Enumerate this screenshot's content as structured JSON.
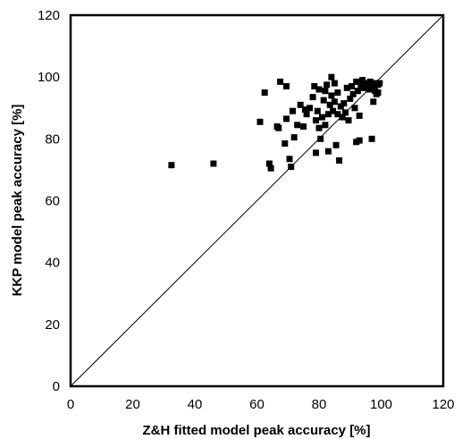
{
  "chart_data": {
    "type": "scatter",
    "xlabel": "Z&H fitted model peak accuracy [%]",
    "ylabel": "KKP model peak accuracy [%]",
    "xlim": [
      0,
      120
    ],
    "ylim": [
      0,
      120
    ],
    "xticks": [
      0,
      20,
      40,
      60,
      80,
      100,
      120
    ],
    "yticks": [
      0,
      20,
      40,
      60,
      80,
      100,
      120
    ],
    "grid": false,
    "legend": "none",
    "marker": "square",
    "marker_color": "#000000",
    "reference_line": {
      "from": [
        0,
        0
      ],
      "to": [
        120,
        120
      ],
      "label": ""
    },
    "series": [
      {
        "values": [
          [
            32.5,
            71.5
          ],
          [
            46.0,
            72.0
          ],
          [
            61.0,
            85.5
          ],
          [
            62.5,
            95.0
          ],
          [
            64.0,
            72.0
          ],
          [
            64.5,
            70.5
          ],
          [
            66.5,
            84.0
          ],
          [
            67.0,
            83.5
          ],
          [
            67.5,
            98.5
          ],
          [
            69.0,
            78.5
          ],
          [
            69.5,
            86.5
          ],
          [
            69.5,
            97.0
          ],
          [
            70.5,
            73.5
          ],
          [
            71.0,
            71.0
          ],
          [
            71.5,
            89.0
          ],
          [
            72.0,
            80.5
          ],
          [
            73.0,
            84.5
          ],
          [
            74.0,
            91.0
          ],
          [
            75.0,
            84.0
          ],
          [
            75.5,
            89.5
          ],
          [
            76.0,
            88.0
          ],
          [
            77.0,
            90.0
          ],
          [
            78.0,
            93.5
          ],
          [
            78.5,
            97.0
          ],
          [
            79.0,
            75.5
          ],
          [
            79.0,
            86.0
          ],
          [
            79.5,
            89.0
          ],
          [
            80.0,
            96.0
          ],
          [
            80.0,
            83.5
          ],
          [
            80.5,
            80.0
          ],
          [
            81.0,
            87.0
          ],
          [
            81.5,
            92.5
          ],
          [
            82.0,
            84.5
          ],
          [
            82.0,
            95.5
          ],
          [
            82.5,
            97.5
          ],
          [
            83.0,
            76.0
          ],
          [
            83.0,
            88.0
          ],
          [
            83.5,
            91.0
          ],
          [
            84.0,
            100.0
          ],
          [
            84.0,
            94.0
          ],
          [
            84.5,
            89.0
          ],
          [
            85.0,
            98.0
          ],
          [
            85.0,
            92.0
          ],
          [
            85.5,
            78.0
          ],
          [
            86.0,
            88.0
          ],
          [
            86.0,
            95.0
          ],
          [
            86.5,
            73.0
          ],
          [
            87.0,
            90.5
          ],
          [
            87.5,
            87.0
          ],
          [
            88.0,
            91.5
          ],
          [
            88.5,
            88.5
          ],
          [
            89.0,
            96.5
          ],
          [
            89.5,
            86.0
          ],
          [
            90.0,
            93.0
          ],
          [
            90.5,
            97.0
          ],
          [
            91.0,
            94.5
          ],
          [
            91.5,
            90.0
          ],
          [
            92.0,
            79.0
          ],
          [
            92.0,
            98.5
          ],
          [
            92.5,
            95.5
          ],
          [
            93.0,
            79.5
          ],
          [
            93.0,
            87.5
          ],
          [
            93.5,
            97.0
          ],
          [
            94.0,
            99.0
          ],
          [
            94.5,
            96.5
          ],
          [
            95.0,
            98.0
          ],
          [
            95.5,
            97.5
          ],
          [
            96.0,
            96.0
          ],
          [
            96.5,
            98.5
          ],
          [
            97.0,
            80.0
          ],
          [
            97.5,
            92.0
          ],
          [
            97.5,
            97.0
          ],
          [
            98.0,
            95.5
          ],
          [
            98.0,
            98.0
          ],
          [
            98.5,
            94.5
          ],
          [
            99.0,
            97.5
          ],
          [
            99.0,
            95.0
          ],
          [
            99.5,
            98.0
          ]
        ]
      }
    ]
  }
}
